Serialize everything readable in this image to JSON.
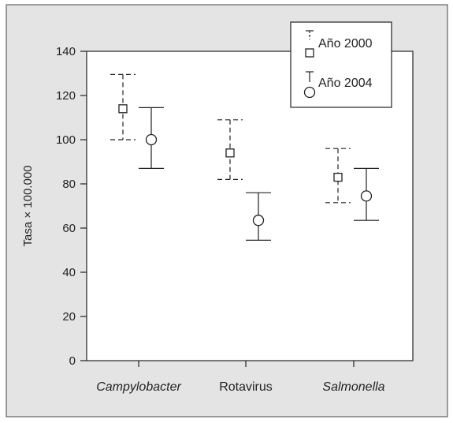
{
  "chart_data": {
    "type": "scatter",
    "title": "",
    "xlabel": "",
    "ylabel": "Tasa × 100.000",
    "ylim": [
      0,
      140
    ],
    "yticks": [
      0,
      20,
      40,
      60,
      80,
      100,
      120,
      140
    ],
    "grid": false,
    "legend_position": "top-right",
    "categories": [
      {
        "label": "Campylobacter",
        "italic": true
      },
      {
        "label": "Rotavirus",
        "italic": false
      },
      {
        "label": "Salmonella",
        "italic": true
      }
    ],
    "series": [
      {
        "name": "Año 2000",
        "marker": "square",
        "line_style": "dashed",
        "points": [
          {
            "category": "Campylobacter",
            "value": 114,
            "lower": 100,
            "upper": 129.5
          },
          {
            "category": "Rotavirus",
            "value": 94,
            "lower": 82,
            "upper": 109
          },
          {
            "category": "Salmonella",
            "value": 83,
            "lower": 71.5,
            "upper": 96
          }
        ]
      },
      {
        "name": "Año 2004",
        "marker": "circle",
        "line_style": "solid",
        "points": [
          {
            "category": "Campylobacter",
            "value": 100,
            "lower": 87,
            "upper": 114.5
          },
          {
            "category": "Rotavirus",
            "value": 63.5,
            "lower": 54.5,
            "upper": 76
          },
          {
            "category": "Salmonella",
            "value": 74.5,
            "lower": 63.5,
            "upper": 87
          }
        ]
      }
    ],
    "colors": {
      "background": "#e4e4e4",
      "plot_area": "#ffffff",
      "ink": "#222222"
    }
  }
}
